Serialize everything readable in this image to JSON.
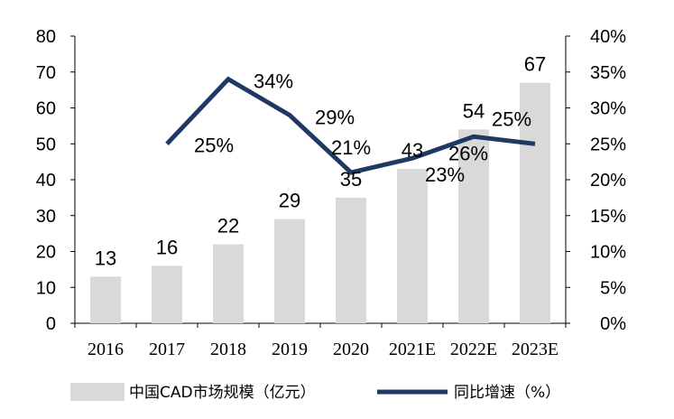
{
  "chart_data": {
    "type": "bar",
    "categories": [
      "2016",
      "2017",
      "2018",
      "2019",
      "2020",
      "2021E",
      "2022E",
      "2023E"
    ],
    "series": [
      {
        "name": "中国CAD市场规模（亿元）",
        "type": "bar",
        "axis": "left",
        "values": [
          13,
          16,
          22,
          29,
          35,
          43,
          54,
          67
        ],
        "labels": [
          "13",
          "16",
          "22",
          "29",
          "35",
          "43",
          "54",
          "67"
        ],
        "color": "#d9d9d9"
      },
      {
        "name": "同比增速（%）",
        "type": "line",
        "axis": "right",
        "values": [
          null,
          25,
          34,
          29,
          21,
          23,
          26,
          25
        ],
        "labels": [
          "",
          "25%",
          "34%",
          "29%",
          "21%",
          "23%",
          "26%",
          "25%"
        ],
        "color": "#1f3864"
      }
    ],
    "y_left": {
      "ylim": [
        0,
        80
      ],
      "ticks": [
        "0",
        "10",
        "20",
        "30",
        "40",
        "50",
        "60",
        "70",
        "80"
      ]
    },
    "y_right": {
      "ylim": [
        0,
        40
      ],
      "ticks": [
        "0%",
        "5%",
        "10%",
        "15%",
        "20%",
        "25%",
        "30%",
        "35%",
        "40%"
      ]
    },
    "grid": false,
    "legend": "bottom"
  }
}
